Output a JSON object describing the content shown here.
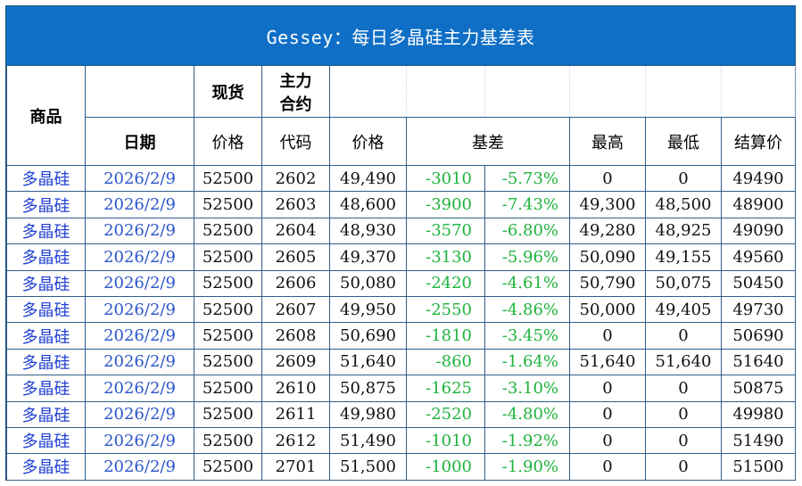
{
  "title": "Gessey：每日多晶硅主力基差表",
  "headers": {
    "product": "商品",
    "date": "日期",
    "spot": "现货",
    "spot_price": "价格",
    "contract_line1": "主力",
    "contract_line2": "合约",
    "contract_code": "代码",
    "price": "价格",
    "basis": "基差",
    "high": "最高",
    "low": "最低",
    "settle": "结算价"
  },
  "rows": [
    {
      "product": "多晶硅",
      "date": "2026/2/9",
      "spot": "52500",
      "code": "2602",
      "price": "49,490",
      "basis": "-3010",
      "pct": "-5.73%",
      "high": "0",
      "low": "0",
      "settle": "49490"
    },
    {
      "product": "多晶硅",
      "date": "2026/2/9",
      "spot": "52500",
      "code": "2603",
      "price": "48,600",
      "basis": "-3900",
      "pct": "-7.43%",
      "high": "49,300",
      "low": "48,500",
      "settle": "48900"
    },
    {
      "product": "多晶硅",
      "date": "2026/2/9",
      "spot": "52500",
      "code": "2604",
      "price": "48,930",
      "basis": "-3570",
      "pct": "-6.80%",
      "high": "49,280",
      "low": "48,925",
      "settle": "49090"
    },
    {
      "product": "多晶硅",
      "date": "2026/2/9",
      "spot": "52500",
      "code": "2605",
      "price": "49,370",
      "basis": "-3130",
      "pct": "-5.96%",
      "high": "50,090",
      "low": "49,155",
      "settle": "49560"
    },
    {
      "product": "多晶硅",
      "date": "2026/2/9",
      "spot": "52500",
      "code": "2606",
      "price": "50,080",
      "basis": "-2420",
      "pct": "-4.61%",
      "high": "50,790",
      "low": "50,075",
      "settle": "50450"
    },
    {
      "product": "多晶硅",
      "date": "2026/2/9",
      "spot": "52500",
      "code": "2607",
      "price": "49,950",
      "basis": "-2550",
      "pct": "-4.86%",
      "high": "50,000",
      "low": "49,405",
      "settle": "49730"
    },
    {
      "product": "多晶硅",
      "date": "2026/2/9",
      "spot": "52500",
      "code": "2608",
      "price": "50,690",
      "basis": "-1810",
      "pct": "-3.45%",
      "high": "0",
      "low": "0",
      "settle": "50690"
    },
    {
      "product": "多晶硅",
      "date": "2026/2/9",
      "spot": "52500",
      "code": "2609",
      "price": "51,640",
      "basis": "-860",
      "pct": "-1.64%",
      "high": "51,640",
      "low": "51,640",
      "settle": "51640"
    },
    {
      "product": "多晶硅",
      "date": "2026/2/9",
      "spot": "52500",
      "code": "2610",
      "price": "50,875",
      "basis": "-1625",
      "pct": "-3.10%",
      "high": "0",
      "low": "0",
      "settle": "50875"
    },
    {
      "product": "多晶硅",
      "date": "2026/2/9",
      "spot": "52500",
      "code": "2611",
      "price": "49,980",
      "basis": "-2520",
      "pct": "-4.80%",
      "high": "0",
      "low": "0",
      "settle": "49980"
    },
    {
      "product": "多晶硅",
      "date": "2026/2/9",
      "spot": "52500",
      "code": "2612",
      "price": "51,490",
      "basis": "-1010",
      "pct": "-1.92%",
      "high": "0",
      "low": "0",
      "settle": "51490"
    },
    {
      "product": "多晶硅",
      "date": "2026/2/9",
      "spot": "52500",
      "code": "2701",
      "price": "51,500",
      "basis": "-1000",
      "pct": "-1.90%",
      "high": "0",
      "low": "0",
      "settle": "51500"
    }
  ],
  "colors": {
    "title_bg": "#0f6fc6",
    "title_text": "#ffffff",
    "product_text": "#1f3fd1",
    "date_text": "#2b55c9",
    "basis_text": "#1fb33c",
    "border": "#2e5f8a"
  }
}
